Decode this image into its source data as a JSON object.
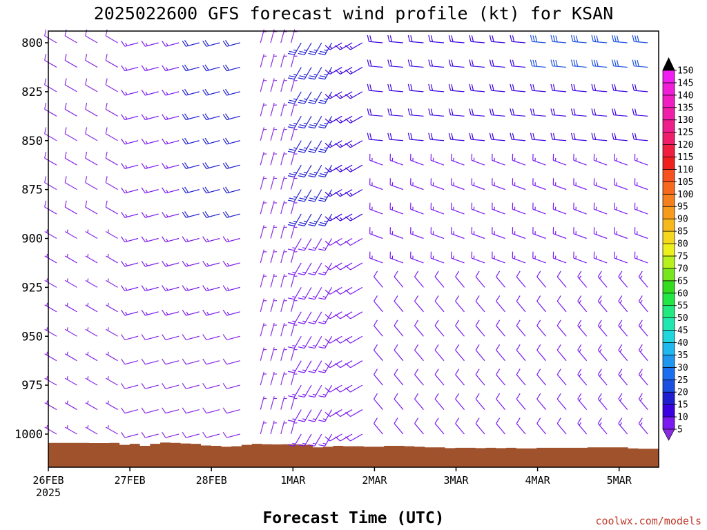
{
  "chart_data": {
    "type": "wind_barb_profile",
    "title": "2025022600 GFS forecast wind profile (kt) for KSAN",
    "xlabel": "Forecast Time (UTC)",
    "ylabel": "",
    "credit": "coolwx.com/models",
    "x_ticks": [
      "26FEB",
      "27FEB",
      "28FEB",
      "1MAR",
      "2MAR",
      "3MAR",
      "4MAR",
      "5MAR"
    ],
    "x_year": "2025",
    "y_ticks": [
      800,
      825,
      850,
      875,
      900,
      925,
      950,
      975,
      1000
    ],
    "ylim": [
      1007,
      795
    ],
    "y_reversed": true,
    "xlim_hours": [
      0,
      228
    ],
    "colorbar": {
      "ticks": [
        5,
        10,
        15,
        20,
        25,
        30,
        35,
        40,
        45,
        50,
        55,
        60,
        65,
        70,
        75,
        80,
        85,
        90,
        95,
        100,
        105,
        110,
        115,
        120,
        125,
        130,
        135,
        140,
        145,
        150
      ],
      "colors": [
        "#8a2be2",
        "#7a1af0",
        "#3a00e0",
        "#1f1fd0",
        "#1a4fe0",
        "#1a6ff0",
        "#1f96f0",
        "#20b8ee",
        "#1fd6dc",
        "#20e6b0",
        "#20ea80",
        "#22e644",
        "#33dd1e",
        "#77e61e",
        "#b8f01e",
        "#eef01e",
        "#f5d81e",
        "#f7b81e",
        "#f79a1e",
        "#f7801e",
        "#f76a1e",
        "#f7521e",
        "#f0201e",
        "#f01e40",
        "#f01e6a",
        "#ee1e8c",
        "#f01ea8",
        "#f01ec2",
        "#f01ed8",
        "#f01ef0"
      ]
    },
    "surface_color": "#a0522d",
    "surface_pressure": [
      1004.5,
      1004.5,
      1004.5,
      1004.5,
      1004.6,
      1004.6,
      1004.5,
      1005.5,
      1005.0,
      1006.0,
      1005.0,
      1004.3,
      1004.5,
      1004.8,
      1005.0,
      1005.8,
      1006.0,
      1006.5,
      1006.2,
      1005.5,
      1005.0,
      1005.2,
      1005.3,
      1005.2,
      1005.3,
      1005.5,
      1006.8,
      1006.5,
      1006.0,
      1006.2,
      1006.2,
      1006.5,
      1006.5,
      1006.0,
      1006.0,
      1006.2,
      1006.5,
      1006.8,
      1006.8,
      1007.2,
      1007.0,
      1007.0,
      1007.2,
      1007.0,
      1007.2,
      1007.0,
      1007.3,
      1007.3,
      1007.0,
      1007.0,
      1007.0,
      1007.0,
      1007.0,
      1006.8,
      1006.8,
      1006.8,
      1006.8,
      1007.3,
      1007.5,
      1007.5
    ],
    "barb_levels": [
      800,
      812.5,
      825,
      837.5,
      850,
      862.5,
      875,
      887.5,
      900,
      912.5,
      925,
      937.5,
      950,
      962.5,
      975,
      987.5,
      1000
    ],
    "barb_times_hours": [
      0,
      6,
      12,
      18,
      24,
      30,
      36,
      42,
      48,
      54,
      60,
      63,
      66,
      69,
      72,
      75,
      78,
      81,
      84,
      87,
      90,
      96,
      102,
      108,
      114,
      120,
      126,
      132,
      138,
      144,
      150,
      156,
      162,
      168,
      174,
      180,
      186,
      192,
      198,
      204,
      210,
      216,
      222,
      228
    ],
    "wind_regimes": [
      {
        "period": "26FEB 00Z - 27FEB 00Z",
        "direction_deg": 300,
        "speed_kt": 8
      },
      {
        "period": "27FEB 00Z - 28FEB 12Z",
        "direction_deg": 255,
        "speed_kt": 14
      },
      {
        "period": "28FEB 12Z - 1MAR 00Z",
        "direction_deg": 20,
        "speed_kt": 7
      },
      {
        "period": "1MAR 00Z - 1MAR 12Z",
        "direction_deg": 210,
        "speed_kt": 24
      },
      {
        "period": "1MAR 12Z - 2MAR 00Z",
        "direction_deg": 240,
        "speed_kt": 14
      },
      {
        "period": "2MAR 00Z - 5MAR 12Z (upper)",
        "direction_deg": 275,
        "speed_kt": 18
      },
      {
        "period": "2MAR 00Z - 5MAR 12Z (lower)",
        "direction_deg": 320,
        "speed_kt": 10
      }
    ]
  }
}
